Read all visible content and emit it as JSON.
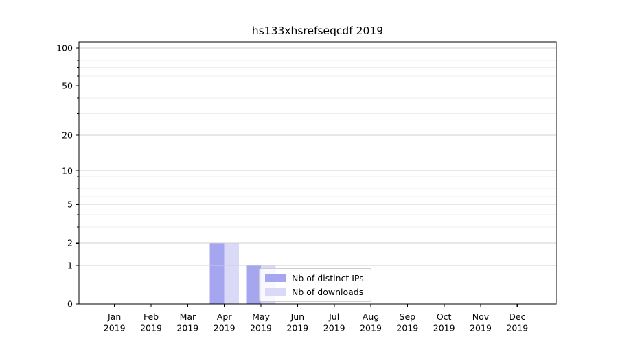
{
  "figure": {
    "background": "#ffffff"
  },
  "chart_data": {
    "type": "bar",
    "title": "hs133xhsrefseqcdf 2019",
    "categories": [
      "Jan 2019",
      "Feb 2019",
      "Mar 2019",
      "Apr 2019",
      "May 2019",
      "Jun 2019",
      "Jul 2019",
      "Aug 2019",
      "Sep 2019",
      "Oct 2019",
      "Nov 2019",
      "Dec 2019"
    ],
    "x_tick_months": [
      "Jan",
      "Feb",
      "Mar",
      "Apr",
      "May",
      "Jun",
      "Jul",
      "Aug",
      "Sep",
      "Oct",
      "Nov",
      "Dec"
    ],
    "x_tick_year": "2019",
    "series": [
      {
        "name": "Nb of distinct IPs",
        "color": "#a6a6f0",
        "values": [
          0,
          0,
          0,
          2,
          1,
          0,
          0,
          0,
          0,
          0,
          0,
          0
        ]
      },
      {
        "name": "Nb of downloads",
        "color": "#dadaf8",
        "values": [
          0,
          0,
          0,
          2,
          1,
          0,
          0,
          0,
          0,
          0,
          0,
          0
        ]
      }
    ],
    "xlabel": "",
    "ylabel": "",
    "yscale": "log1p",
    "ylim": [
      0,
      112
    ],
    "yticks": [
      0,
      1,
      2,
      5,
      10,
      20,
      50,
      100
    ],
    "yticks_minor": [
      3,
      4,
      6,
      7,
      8,
      9,
      30,
      40,
      60,
      70,
      80,
      90
    ],
    "grid": true,
    "legend_position": "lower center"
  },
  "style": {
    "grid_major_color": "#cfcfcf",
    "grid_minor_color": "#ececec",
    "axis_color": "#000000",
    "text_color": "#000000",
    "legend_border_color": "#cccccc",
    "legend_background": "rgba(255,255,255,0.8)"
  }
}
